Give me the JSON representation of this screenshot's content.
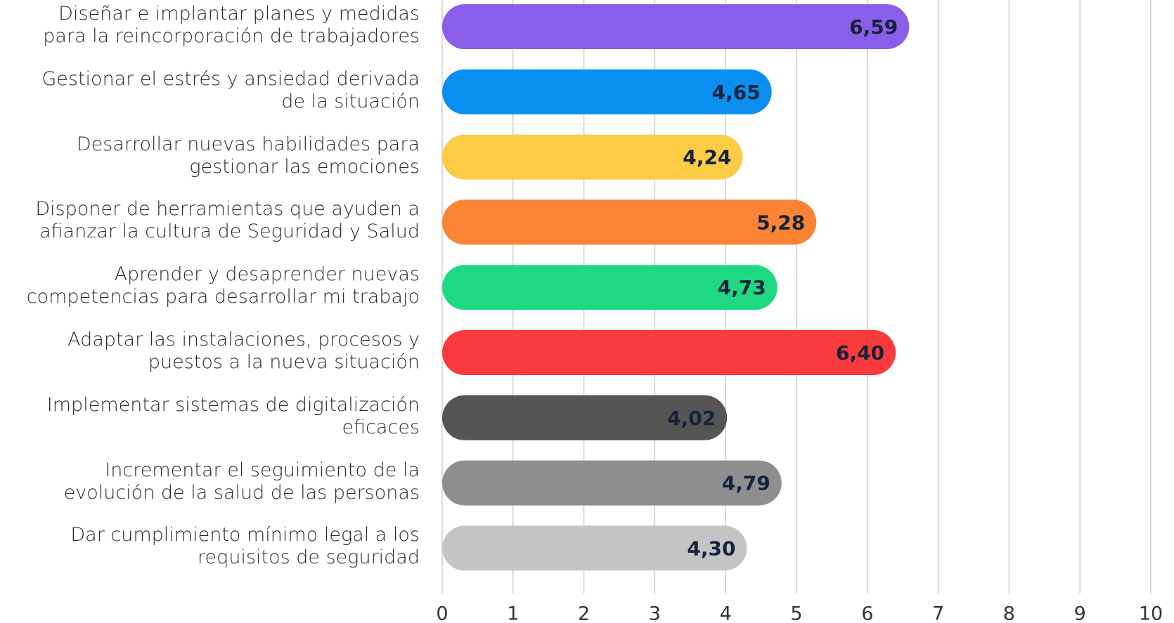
{
  "chart_data": {
    "type": "bar",
    "orientation": "horizontal",
    "categories": [
      "Diseñar e implantar planes y medidas\npara la reincorporación de trabajadores",
      "Gestionar el estrés y ansiedad derivada\nde la situación",
      "Desarrollar nuevas habilidades para\ngestionar las emociones",
      "Disponer de herramientas que ayuden a\nafianzar la cultura de Seguridad y Salud",
      "Aprender y desaprender nuevas\ncompetencias para desarrollar mi trabajo",
      "Adaptar las instalaciones, procesos y\npuestos a la nueva situación",
      "Implementar sistemas de digitalización\neficaces",
      "Incrementar el seguimiento de la\nevolución de la salud de las personas",
      "Dar cumplimiento mínimo legal a los\nrequisitos de seguridad"
    ],
    "values": [
      6.59,
      4.65,
      4.24,
      5.28,
      4.73,
      6.4,
      4.02,
      4.79,
      4.3
    ],
    "value_labels": [
      "6,59",
      "4,65",
      "4,24",
      "5,28",
      "4,73",
      "6,40",
      "4,02",
      "4,79",
      "4,30"
    ],
    "colors": [
      "#8a5ee8",
      "#0a8ff0",
      "#fccc45",
      "#fb8334",
      "#1ed982",
      "#fa3a3c",
      "#555555",
      "#8e8e8e",
      "#c4c4c4"
    ],
    "xlim": [
      0,
      10
    ],
    "xticks": [
      0,
      1,
      2,
      3,
      4,
      5,
      6,
      7,
      8,
      9,
      10
    ],
    "grid": true
  }
}
